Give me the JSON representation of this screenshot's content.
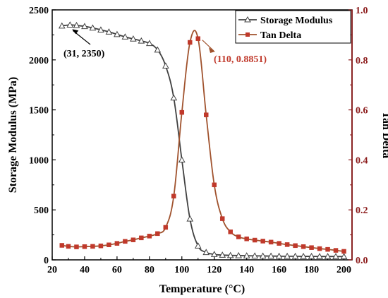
{
  "chart_data": {
    "type": "line",
    "xlabel": "Temperature (°C)",
    "ylabel_left": "Storage Modulus (MPa)",
    "ylabel_right": "Tan Delta",
    "xlim": [
      20,
      205
    ],
    "ylim_left": [
      0,
      2500
    ],
    "ylim_right": [
      0,
      1.0
    ],
    "x_ticks": [
      20,
      40,
      60,
      80,
      100,
      120,
      140,
      160,
      180,
      200
    ],
    "y_left_ticks": [
      0,
      500,
      1000,
      1500,
      2000,
      2500
    ],
    "y_right_ticks": [
      0.0,
      0.2,
      0.4,
      0.6,
      0.8,
      1.0
    ],
    "legend_position": "top-right",
    "grid": false,
    "series": [
      {
        "name": "Storage Modulus",
        "axis": "left",
        "color": "#404040",
        "marker": "open-triangle",
        "x": [
          26,
          31,
          35,
          40,
          45,
          50,
          55,
          60,
          65,
          70,
          75,
          80,
          85,
          90,
          95,
          100,
          105,
          110,
          115,
          120,
          125,
          130,
          135,
          140,
          145,
          150,
          155,
          160,
          165,
          170,
          175,
          180,
          185,
          190,
          195,
          200
        ],
        "values": [
          2340,
          2350,
          2345,
          2335,
          2320,
          2300,
          2280,
          2255,
          2230,
          2210,
          2190,
          2165,
          2100,
          1940,
          1620,
          1000,
          410,
          140,
          75,
          55,
          48,
          45,
          43,
          41,
          40,
          39,
          38,
          37,
          36,
          36,
          35,
          35,
          34,
          34,
          34,
          33
        ]
      },
      {
        "name": "Tan Delta",
        "axis": "right",
        "color": "#C0392B",
        "line_color": "#A0522D",
        "marker": "square",
        "x": [
          26,
          30,
          35,
          40,
          45,
          50,
          55,
          60,
          65,
          70,
          75,
          80,
          85,
          90,
          95,
          100,
          105,
          110,
          115,
          120,
          125,
          130,
          135,
          140,
          145,
          150,
          155,
          160,
          165,
          170,
          175,
          180,
          185,
          190,
          195,
          200
        ],
        "values": [
          0.058,
          0.054,
          0.052,
          0.053,
          0.054,
          0.056,
          0.06,
          0.066,
          0.074,
          0.08,
          0.088,
          0.095,
          0.105,
          0.13,
          0.255,
          0.59,
          0.87,
          0.8851,
          0.58,
          0.3,
          0.165,
          0.112,
          0.092,
          0.084,
          0.079,
          0.075,
          0.071,
          0.066,
          0.061,
          0.057,
          0.053,
          0.049,
          0.045,
          0.042,
          0.038,
          0.034
        ]
      }
    ],
    "annotations": [
      {
        "text": "(31, 2350)",
        "x": 31,
        "y": 2350,
        "axis": "left",
        "color": "#000000"
      },
      {
        "text": "(110, 0.8851)",
        "x": 110,
        "y": 0.8851,
        "axis": "right",
        "color": "#C0392B"
      }
    ]
  }
}
